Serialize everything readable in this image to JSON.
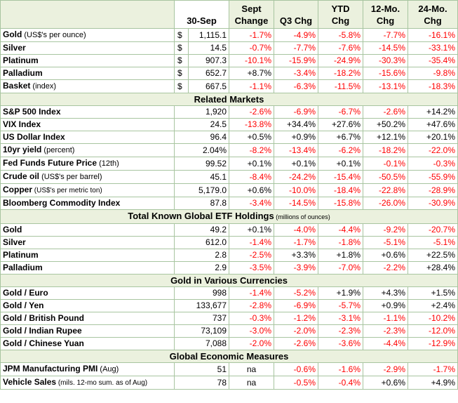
{
  "header": {
    "col1": "30-Sep",
    "col2": [
      "Sept",
      "Change"
    ],
    "col3": "Q3 Chg",
    "col4": [
      "YTD",
      "Chg"
    ],
    "col5": [
      "12-Mo.",
      "Chg"
    ],
    "col6": [
      "24-Mo.",
      "Chg"
    ]
  },
  "sections": [
    {
      "title": "",
      "note": "",
      "rows": [
        {
          "name": "Gold",
          "sub": " (US$'s per ounce)",
          "cur": "$",
          "value": "1,115.1",
          "cells": [
            "-1.7%",
            "-4.9%",
            "-5.8%",
            "-7.7%",
            "-16.1%"
          ]
        },
        {
          "name": "Silver",
          "sub": "",
          "cur": "$",
          "value": "14.5",
          "cells": [
            "-0.7%",
            "-7.7%",
            "-7.6%",
            "-14.5%",
            "-33.1%"
          ]
        },
        {
          "name": "Platinum",
          "sub": "",
          "cur": "$",
          "value": "907.3",
          "cells": [
            "-10.1%",
            "-15.9%",
            "-24.9%",
            "-30.3%",
            "-35.4%"
          ]
        },
        {
          "name": "Palladium",
          "sub": "",
          "cur": "$",
          "value": "652.7",
          "cells": [
            "+8.7%",
            "-3.4%",
            "-18.2%",
            "-15.6%",
            "-9.8%"
          ]
        },
        {
          "name": "Basket",
          "sub": " (index)",
          "cur": "$",
          "value": "667.5",
          "cells": [
            "-1.1%",
            "-6.3%",
            "-11.5%",
            "-13.1%",
            "-18.3%"
          ]
        }
      ]
    },
    {
      "title": "Related Markets",
      "note": "",
      "rows": [
        {
          "name": "S&P 500 Index",
          "sub": "",
          "cur": "",
          "value": "1,920",
          "cells": [
            "-2.6%",
            "-6.9%",
            "-6.7%",
            "-2.6%",
            "+14.2%"
          ]
        },
        {
          "name": "VIX Index",
          "sub": "",
          "cur": "",
          "value": "24.5",
          "cells": [
            "-13.8%",
            "+34.4%",
            "+27.6%",
            "+50.2%",
            "+47.6%"
          ]
        },
        {
          "name": "US Dollar Index",
          "sub": "",
          "cur": "",
          "value": "96.4",
          "cells": [
            "+0.5%",
            "+0.9%",
            "+6.7%",
            "+12.1%",
            "+20.1%"
          ]
        },
        {
          "name": "10yr yield",
          "sub": " (percent)",
          "cur": "",
          "value": "2.04%",
          "cells": [
            "-8.2%",
            "-13.4%",
            "-6.2%",
            "-18.2%",
            "-22.0%"
          ]
        },
        {
          "name": "Fed Funds Future Price",
          "sub": " (12th)",
          "cur": "",
          "value": "99.52",
          "cells": [
            "+0.1%",
            "+0.1%",
            "+0.1%",
            "-0.1%",
            "-0.3%"
          ]
        },
        {
          "name": "Crude oil",
          "sub": " (US$'s per barrel)",
          "cur": "",
          "value": "45.1",
          "cells": [
            "-8.4%",
            "-24.2%",
            "-15.4%",
            "-50.5%",
            "-55.9%"
          ]
        },
        {
          "name": "Copper",
          "sub": " (US$'s per metric ton)",
          "cur": "",
          "value": "5,179.0",
          "cells": [
            "+0.6%",
            "-10.0%",
            "-18.4%",
            "-22.8%",
            "-28.9%"
          ]
        },
        {
          "name": "Bloomberg Commodity Index",
          "sub": "",
          "cur": "",
          "value": "87.8",
          "cells": [
            "-3.4%",
            "-14.5%",
            "-15.8%",
            "-26.0%",
            "-30.9%"
          ]
        }
      ]
    },
    {
      "title": "Total Known Global ETF Holdings",
      "note": " (millions of ounces)",
      "rows": [
        {
          "name": "Gold",
          "sub": "",
          "cur": "",
          "value": "49.2",
          "cells": [
            "+0.1%",
            "-4.0%",
            "-4.4%",
            "-9.2%",
            "-20.7%"
          ]
        },
        {
          "name": "Silver",
          "sub": "",
          "cur": "",
          "value": "612.0",
          "cells": [
            "-1.4%",
            "-1.7%",
            "-1.8%",
            "-5.1%",
            "-5.1%"
          ]
        },
        {
          "name": "Platinum",
          "sub": "",
          "cur": "",
          "value": "2.8",
          "cells": [
            "-2.5%",
            "+3.3%",
            "+1.8%",
            "+0.6%",
            "+22.5%"
          ]
        },
        {
          "name": "Palladium",
          "sub": "",
          "cur": "",
          "value": "2.9",
          "cells": [
            "-3.5%",
            "-3.9%",
            "-7.0%",
            "-2.2%",
            "+28.4%"
          ]
        }
      ]
    },
    {
      "title": "Gold in Various Currencies",
      "note": "",
      "rows": [
        {
          "name": "Gold / Euro",
          "sub": "",
          "cur": "",
          "value": "998",
          "cells": [
            "-1.4%",
            "-5.2%",
            "+1.9%",
            "+4.3%",
            "+1.5%"
          ]
        },
        {
          "name": "Gold / Yen",
          "sub": "",
          "cur": "",
          "value": "133,677",
          "cells": [
            "-2.8%",
            "-6.9%",
            "-5.7%",
            "+0.9%",
            "+2.4%"
          ]
        },
        {
          "name": "Gold / British Pound",
          "sub": "",
          "cur": "",
          "value": "737",
          "cells": [
            "-0.3%",
            "-1.2%",
            "-3.1%",
            "-1.1%",
            "-10.2%"
          ]
        },
        {
          "name": "Gold / Indian Rupee",
          "sub": "",
          "cur": "",
          "value": "73,109",
          "cells": [
            "-3.0%",
            "-2.0%",
            "-2.3%",
            "-2.3%",
            "-12.0%"
          ]
        },
        {
          "name": "Gold / Chinese Yuan",
          "sub": "",
          "cur": "",
          "value": "7,088",
          "cells": [
            "-2.0%",
            "-2.6%",
            "-3.6%",
            "-4.4%",
            "-12.9%"
          ]
        }
      ]
    },
    {
      "title": "Global Economic Measures",
      "note": "",
      "rows": [
        {
          "name": "JPM Manufacturing PMI",
          "sub": " (Aug)",
          "cur": "",
          "value": "51",
          "cells": [
            "na",
            "-0.6%",
            "-1.6%",
            "-2.9%",
            "-1.7%"
          ]
        },
        {
          "name": "Vehicle Sales",
          "sub": " (mils. 12-mo sum. as of Aug)",
          "cur": "",
          "value": "78",
          "cells": [
            "na",
            "-0.5%",
            "-0.4%",
            "+0.6%",
            "+4.9%"
          ]
        }
      ]
    }
  ]
}
